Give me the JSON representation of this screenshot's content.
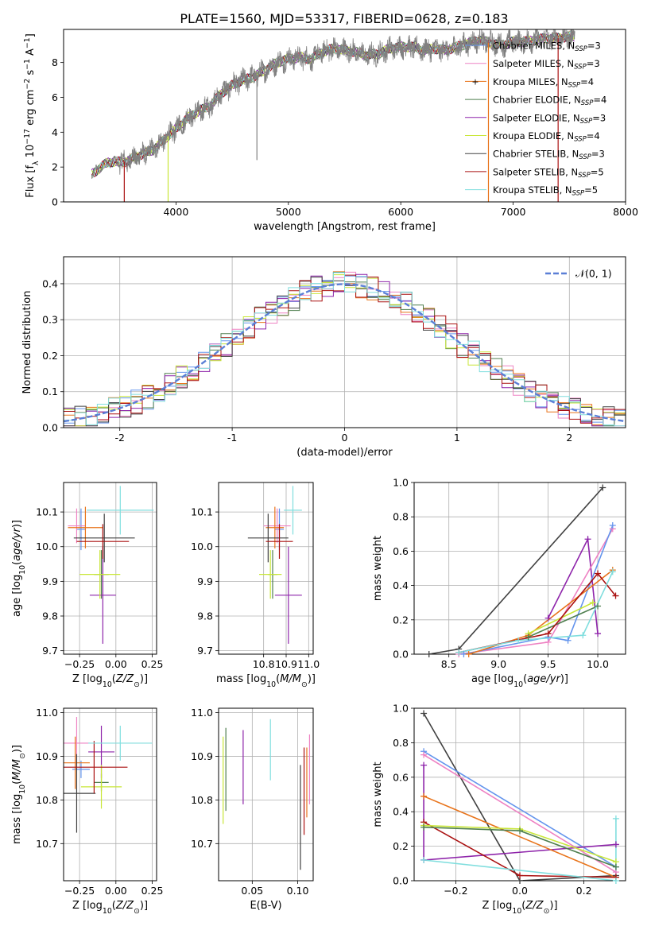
{
  "figure": {
    "title": "PLATE=1560, MJD=53317, FIBERID=0628, z=0.183"
  },
  "colors": {
    "Chabrier MILES": "#6495ed",
    "Salpeter MILES": "#ee82c3",
    "Kroupa MILES": "#e8731a",
    "Chabrier ELODIE": "#4f7f4f",
    "Salpeter ELODIE": "#8e24aa",
    "Kroupa ELODIE": "#c8e637",
    "Chabrier STELIB": "#404040",
    "Salpeter STELIB": "#aa1111",
    "Kroupa STELIB": "#80dede",
    "data": "#808080",
    "gauss": "#5b7fd6"
  },
  "chart_data": [
    {
      "id": "spectrum",
      "type": "line",
      "xlabel": "wavelength [Angstrom, rest frame]",
      "ylabel": "Flux [f_λ 10^-17 erg cm^-2 s^-1 A^-1]",
      "xlim": [
        3000,
        8000
      ],
      "ylim": [
        0,
        9.9
      ],
      "xticks": [
        4000,
        5000,
        6000,
        7000,
        8000
      ],
      "yticks": [
        0,
        2,
        4,
        6,
        8
      ],
      "legend_position": "top-right",
      "series": [
        {
          "name": "Chabrier MILES, N_SSP=3",
          "key": "Chabrier MILES"
        },
        {
          "name": "Salpeter MILES, N_SSP=3",
          "key": "Salpeter MILES"
        },
        {
          "name": "Kroupa MILES, N_SSP=4",
          "key": "Kroupa MILES"
        },
        {
          "name": "Chabrier ELODIE, N_SSP=4",
          "key": "Chabrier ELODIE"
        },
        {
          "name": "Salpeter ELODIE, N_SSP=3",
          "key": "Salpeter ELODIE"
        },
        {
          "name": "Kroupa ELODIE, N_SSP=4",
          "key": "Kroupa ELODIE"
        },
        {
          "name": "Chabrier STELIB, N_SSP=3",
          "key": "Chabrier STELIB"
        },
        {
          "name": "Salpeter STELIB, N_SSP=5",
          "key": "Salpeter STELIB"
        },
        {
          "name": "Kroupa STELIB, N_SSP=5",
          "key": "Kroupa STELIB"
        }
      ],
      "continuum": {
        "x": [
          3250,
          3400,
          3550,
          3650,
          3800,
          3900,
          4000,
          4100,
          4200,
          4300,
          4400,
          4500,
          4600,
          4700,
          4800,
          4900,
          5000,
          5100,
          5200,
          5300,
          5400,
          5500,
          5600,
          5700,
          5800,
          5900,
          6000,
          6100,
          6200,
          6300,
          6400,
          6500,
          6600,
          6700,
          6800,
          6900,
          7000,
          7100,
          7200,
          7300,
          7400,
          7500,
          7550
        ],
        "y": [
          1.6,
          2.3,
          2.3,
          2.6,
          3.0,
          3.6,
          4.2,
          4.8,
          5.2,
          5.5,
          6.2,
          6.7,
          7.0,
          7.2,
          7.6,
          8.0,
          8.2,
          8.3,
          8.2,
          8.6,
          8.8,
          8.7,
          8.6,
          8.4,
          8.5,
          8.8,
          8.9,
          8.9,
          8.7,
          8.8,
          8.7,
          8.9,
          9.1,
          9.3,
          9.1,
          9.0,
          9.2,
          9.2,
          9.3,
          9.4,
          9.4,
          9.5,
          9.5
        ]
      },
      "noise_start": 3500,
      "spikes_down": [
        {
          "x": 3540,
          "key": "Salpeter STELIB"
        },
        {
          "x": 3930,
          "key": "Kroupa ELODIE"
        },
        {
          "x": 4720,
          "key": "data"
        },
        {
          "x": 6780,
          "key": "Kroupa MILES"
        },
        {
          "x": 7400,
          "key": "Salpeter STELIB"
        }
      ]
    },
    {
      "id": "normed-distribution",
      "type": "step",
      "xlabel": "(data-model)/error",
      "ylabel": "Normed distribution",
      "xlim": [
        -2.5,
        2.5
      ],
      "ylim": [
        0,
        0.475
      ],
      "xticks": [
        -2,
        -1,
        0,
        1,
        2
      ],
      "yticks": [
        0.0,
        0.1,
        0.2,
        0.3,
        0.4
      ],
      "legend_position": "top-right",
      "gaussian_label": "𝒩(0, 1)",
      "bin_width": 0.1
    },
    {
      "id": "age-vs-z",
      "type": "scatter",
      "xlabel": "Z [log10(Z/Z⊙)]",
      "ylabel": "age  [log10(age/yr)]",
      "xlim": [
        -0.36,
        0.28
      ],
      "ylim": [
        9.69,
        10.185
      ],
      "xticks": [
        -0.25,
        0.0,
        0.25
      ],
      "xtick_labels": [
        "−0.25",
        "0.00",
        "0.25"
      ],
      "yticks": [
        9.7,
        9.8,
        9.9,
        10.0,
        10.1
      ],
      "points": [
        {
          "key": "Chabrier MILES",
          "x": -0.24,
          "xerr": 0.03,
          "y": 10.05,
          "yerr": 0.06
        },
        {
          "key": "Salpeter MILES",
          "x": -0.27,
          "xerr": 0.06,
          "y": 10.06,
          "yerr": 0.05
        },
        {
          "key": "Kroupa MILES",
          "x": -0.21,
          "xerr": 0.12,
          "y": 10.055,
          "yerr": 0.06
        },
        {
          "key": "Chabrier ELODIE",
          "x": -0.1,
          "xerr": 0.05,
          "y": 9.92,
          "yerr": 0.07
        },
        {
          "key": "Salpeter ELODIE",
          "x": -0.09,
          "xerr": 0.09,
          "y": 9.86,
          "yerr": 0.14
        },
        {
          "key": "Kroupa ELODIE",
          "x": -0.11,
          "xerr": 0.14,
          "y": 9.92,
          "yerr": 0.07
        },
        {
          "key": "Chabrier STELIB",
          "x": -0.08,
          "xerr": 0.21,
          "y": 10.025,
          "yerr": 0.07
        },
        {
          "key": "Salpeter STELIB",
          "x": -0.09,
          "xerr": 0.18,
          "y": 10.015,
          "yerr": 0.05
        },
        {
          "key": "Kroupa STELIB",
          "x": 0.03,
          "xerr": 0.23,
          "y": 10.105,
          "yerr": 0.07
        }
      ]
    },
    {
      "id": "age-vs-mass",
      "type": "scatter",
      "xlabel": "mass [log10(M/M⊙)]",
      "ylabel": "",
      "xlim": [
        10.6,
        11.02
      ],
      "ylim": [
        9.69,
        10.185
      ],
      "xticks": [
        10.8,
        10.9,
        11.0
      ],
      "xtick_labels": [
        "10.8",
        "10.9",
        "11.0"
      ],
      "yticks": [
        9.7,
        9.8,
        9.9,
        10.0,
        10.1
      ],
      "points": [
        {
          "key": "Chabrier MILES",
          "x": 10.87,
          "xerr": 0.02,
          "y": 10.05,
          "yerr": 0.06
        },
        {
          "key": "Salpeter MILES",
          "x": 10.86,
          "xerr": 0.06,
          "y": 10.06,
          "yerr": 0.05
        },
        {
          "key": "Kroupa MILES",
          "x": 10.85,
          "xerr": 0.04,
          "y": 10.055,
          "yerr": 0.06
        },
        {
          "key": "Chabrier ELODIE",
          "x": 10.84,
          "xerr": 0.02,
          "y": 9.92,
          "yerr": 0.07
        },
        {
          "key": "Salpeter ELODIE",
          "x": 10.91,
          "xerr": 0.06,
          "y": 9.86,
          "yerr": 0.14
        },
        {
          "key": "Kroupa ELODIE",
          "x": 10.83,
          "xerr": 0.05,
          "y": 9.92,
          "yerr": 0.07
        },
        {
          "key": "Chabrier STELIB",
          "x": 10.82,
          "xerr": 0.09,
          "y": 10.025,
          "yerr": 0.07
        },
        {
          "key": "Salpeter STELIB",
          "x": 10.87,
          "xerr": 0.06,
          "y": 10.015,
          "yerr": 0.05
        },
        {
          "key": "Kroupa STELIB",
          "x": 10.93,
          "xerr": 0.04,
          "y": 10.105,
          "yerr": 0.07
        }
      ]
    },
    {
      "id": "weight-vs-age",
      "type": "line",
      "xlabel": "age  [log10(age/yr)]",
      "ylabel": "mass weight",
      "xlim": [
        8.15,
        10.28
      ],
      "ylim": [
        0,
        1.0
      ],
      "xticks": [
        8.5,
        9.0,
        9.5,
        10.0
      ],
      "xtick_labels": [
        "8.5",
        "9.0",
        "9.5",
        "10.0"
      ],
      "yticks": [
        0.0,
        0.2,
        0.4,
        0.6,
        0.8,
        1.0
      ],
      "series": [
        {
          "key": "Chabrier STELIB",
          "x": [
            8.3,
            8.6,
            10.05
          ],
          "y": [
            0.0,
            0.03,
            0.97
          ]
        },
        {
          "key": "Salpeter ELODIE",
          "x": [
            9.5,
            9.9,
            10.0
          ],
          "y": [
            0.21,
            0.67,
            0.12
          ]
        },
        {
          "key": "Salpeter MILES",
          "x": [
            8.6,
            9.5,
            10.15
          ],
          "y": [
            0.0,
            0.07,
            0.73
          ]
        },
        {
          "key": "Chabrier MILES",
          "x": [
            8.65,
            9.5,
            9.7,
            10.15
          ],
          "y": [
            0.0,
            0.1,
            0.08,
            0.75
          ]
        },
        {
          "key": "Kroupa MILES",
          "x": [
            8.7,
            9.3,
            10.15
          ],
          "y": [
            0.0,
            0.11,
            0.49
          ]
        },
        {
          "key": "Kroupa ELODIE",
          "x": [
            9.3,
            9.95
          ],
          "y": [
            0.12,
            0.3
          ]
        },
        {
          "key": "Chabrier ELODIE",
          "x": [
            9.3,
            10.0
          ],
          "y": [
            0.1,
            0.28
          ]
        },
        {
          "key": "Salpeter STELIB",
          "x": [
            8.6,
            9.5,
            10.0,
            10.18
          ],
          "y": [
            0.01,
            0.12,
            0.47,
            0.34
          ]
        },
        {
          "key": "Kroupa STELIB",
          "x": [
            8.6,
            9.2,
            9.85,
            10.15
          ],
          "y": [
            0.01,
            0.08,
            0.11,
            0.48
          ]
        }
      ]
    },
    {
      "id": "mass-vs-z",
      "type": "scatter",
      "xlabel": "Z [log10(Z/Z⊙)]",
      "ylabel": "mass [log10(M/M⊙)]",
      "xlim": [
        -0.36,
        0.28
      ],
      "ylim": [
        10.615,
        11.01
      ],
      "xticks": [
        -0.25,
        0.0,
        0.25
      ],
      "xtick_labels": [
        "−0.25",
        "0.00",
        "0.25"
      ],
      "yticks": [
        10.7,
        10.8,
        10.9,
        11.0
      ],
      "points": [
        {
          "key": "Chabrier MILES",
          "x": -0.24,
          "xerr": 0.06,
          "y": 10.87,
          "yerr": 0.02
        },
        {
          "key": "Salpeter MILES",
          "x": -0.27,
          "xerr": 0.09,
          "y": 10.93,
          "yerr": 0.06
        },
        {
          "key": "Kroupa MILES",
          "x": -0.28,
          "xerr": 0.1,
          "y": 10.885,
          "yerr": 0.06
        },
        {
          "key": "Chabrier ELODIE",
          "x": -0.1,
          "xerr": 0.05,
          "y": 10.84,
          "yerr": 0.02
        },
        {
          "key": "Salpeter ELODIE",
          "x": -0.1,
          "xerr": 0.09,
          "y": 10.91,
          "yerr": 0.06
        },
        {
          "key": "Kroupa ELODIE",
          "x": -0.1,
          "xerr": 0.14,
          "y": 10.83,
          "yerr": 0.05
        },
        {
          "key": "Chabrier STELIB",
          "x": -0.27,
          "xerr": 0.13,
          "y": 10.815,
          "yerr": 0.09
        },
        {
          "key": "Salpeter STELIB",
          "x": -0.15,
          "xerr": 0.23,
          "y": 10.875,
          "yerr": 0.06
        },
        {
          "key": "Kroupa STELIB",
          "x": 0.03,
          "xerr": 0.22,
          "y": 10.93,
          "yerr": 0.04
        }
      ]
    },
    {
      "id": "mass-vs-ebv",
      "type": "scatter",
      "xlabel": "E(B-V)",
      "ylabel": "",
      "xlim": [
        0.013,
        0.117
      ],
      "ylim": [
        10.615,
        11.01
      ],
      "xticks": [
        0.05,
        0.1
      ],
      "xtick_labels": [
        "0.05",
        "0.10"
      ],
      "yticks": [
        10.7,
        10.8,
        10.9,
        11.0
      ],
      "points": [
        {
          "key": "Kroupa ELODIE",
          "x": 0.018,
          "y": 10.845,
          "yerr": 0.1
        },
        {
          "key": "Chabrier ELODIE",
          "x": 0.021,
          "y": 10.87,
          "yerr": 0.095
        },
        {
          "key": "Salpeter ELODIE",
          "x": 0.04,
          "y": 10.875,
          "yerr": 0.085
        },
        {
          "key": "Kroupa STELIB",
          "x": 0.07,
          "y": 10.915,
          "yerr": 0.07
        },
        {
          "key": "Chabrier STELIB",
          "x": 0.103,
          "y": 10.76,
          "yerr": 0.12
        },
        {
          "key": "Salpeter STELIB",
          "x": 0.107,
          "y": 10.82,
          "yerr": 0.1
        },
        {
          "key": "Kroupa MILES",
          "x": 0.11,
          "y": 10.84,
          "yerr": 0.08
        },
        {
          "key": "Salpeter MILES",
          "x": 0.113,
          "y": 10.87,
          "yerr": 0.08
        }
      ]
    },
    {
      "id": "weight-vs-z",
      "type": "line",
      "xlabel": "Z [log10(Z/Z⊙)]",
      "ylabel": "mass weight",
      "xlim": [
        -0.33,
        0.33
      ],
      "ylim": [
        0,
        1.0
      ],
      "xticks": [
        -0.2,
        0.0,
        0.2
      ],
      "xtick_labels": [
        "−0.2",
        "0.0",
        "0.2"
      ],
      "yticks": [
        0.0,
        0.2,
        0.4,
        0.6,
        0.8,
        1.0
      ],
      "series": [
        {
          "key": "Chabrier STELIB",
          "x": [
            -0.3,
            0.0,
            0.3
          ],
          "y": [
            0.97,
            0.0,
            0.03
          ]
        },
        {
          "key": "Chabrier MILES",
          "x": [
            -0.3,
            0.3
          ],
          "y": [
            0.75,
            0.08
          ]
        },
        {
          "key": "Salpeter MILES",
          "x": [
            -0.3,
            0.3
          ],
          "y": [
            0.73,
            0.05
          ]
        },
        {
          "key": "Salpeter ELODIE",
          "x": [
            -0.3,
            -0.3,
            0.3
          ],
          "y": [
            0.67,
            0.12,
            0.21
          ]
        },
        {
          "key": "Kroupa MILES",
          "x": [
            -0.3,
            0.3
          ],
          "y": [
            0.49,
            0.02
          ]
        },
        {
          "key": "Salpeter STELIB",
          "x": [
            -0.3,
            0.0,
            0.3
          ],
          "y": [
            0.34,
            0.03,
            0.02
          ]
        },
        {
          "key": "Kroupa ELODIE",
          "x": [
            -0.3,
            0.0,
            0.3
          ],
          "y": [
            0.32,
            0.3,
            0.11
          ]
        },
        {
          "key": "Chabrier ELODIE",
          "x": [
            -0.3,
            0.0,
            0.3
          ],
          "y": [
            0.31,
            0.29,
            0.08
          ]
        },
        {
          "key": "Kroupa STELIB",
          "x": [
            -0.3,
            0.3,
            0.3
          ],
          "y": [
            0.12,
            0.0,
            0.36
          ]
        }
      ]
    }
  ]
}
